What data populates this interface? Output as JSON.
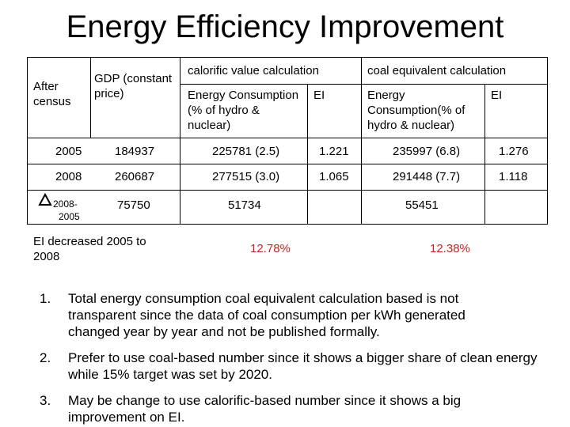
{
  "title": "Energy Efficiency Improvement",
  "table": {
    "header": {
      "after_census": "After census",
      "gdp": "GDP (constant price)",
      "calorific_group": "calorific value calculation",
      "coal_group": "coal equivalent calculation",
      "energy_consumption_1": "Energy Consumption (% of hydro & nuclear)",
      "ei_1": "EI",
      "energy_consumption_2": "Energy Consumption(% of hydro & nuclear)",
      "ei_2": "EI"
    },
    "rows": [
      {
        "year": "2005",
        "gdp": "184937",
        "cal": "225781 (2.5)",
        "cal_ei": "1.221",
        "coal": "235997 (6.8)",
        "coal_ei": "1.276"
      },
      {
        "year": "2008",
        "gdp": "260687",
        "cal": "277515 (3.0)",
        "cal_ei": "1.065",
        "coal": "291448 (7.7)",
        "coal_ei": "1.118"
      }
    ],
    "delta_row": {
      "label_top": "2008-",
      "label_bottom": "2005",
      "gdp": "75750",
      "cal": "51734",
      "coal": "55451"
    },
    "ei_row": {
      "label": "EI decreased  2005 to 2008",
      "cal_pct": "12.78%",
      "coal_pct": "12.38%"
    }
  },
  "notes": [
    {
      "num": "1.",
      "text": "Total energy consumption coal equivalent calculation based is not transparent since the data of coal consumption per kWh generated changed year by year and not be published formally."
    },
    {
      "num": "2.",
      "text": "Prefer to use coal-based number since it shows a bigger share of clean energy while 15% target was set by 2020."
    },
    {
      "num": "3.",
      "text": "May be change to use calorific-based number since it shows a big improvement on EI."
    }
  ],
  "colors": {
    "accent_red": "#cc1f1f"
  },
  "icons": {
    "delta": "delta-triangle-icon"
  }
}
